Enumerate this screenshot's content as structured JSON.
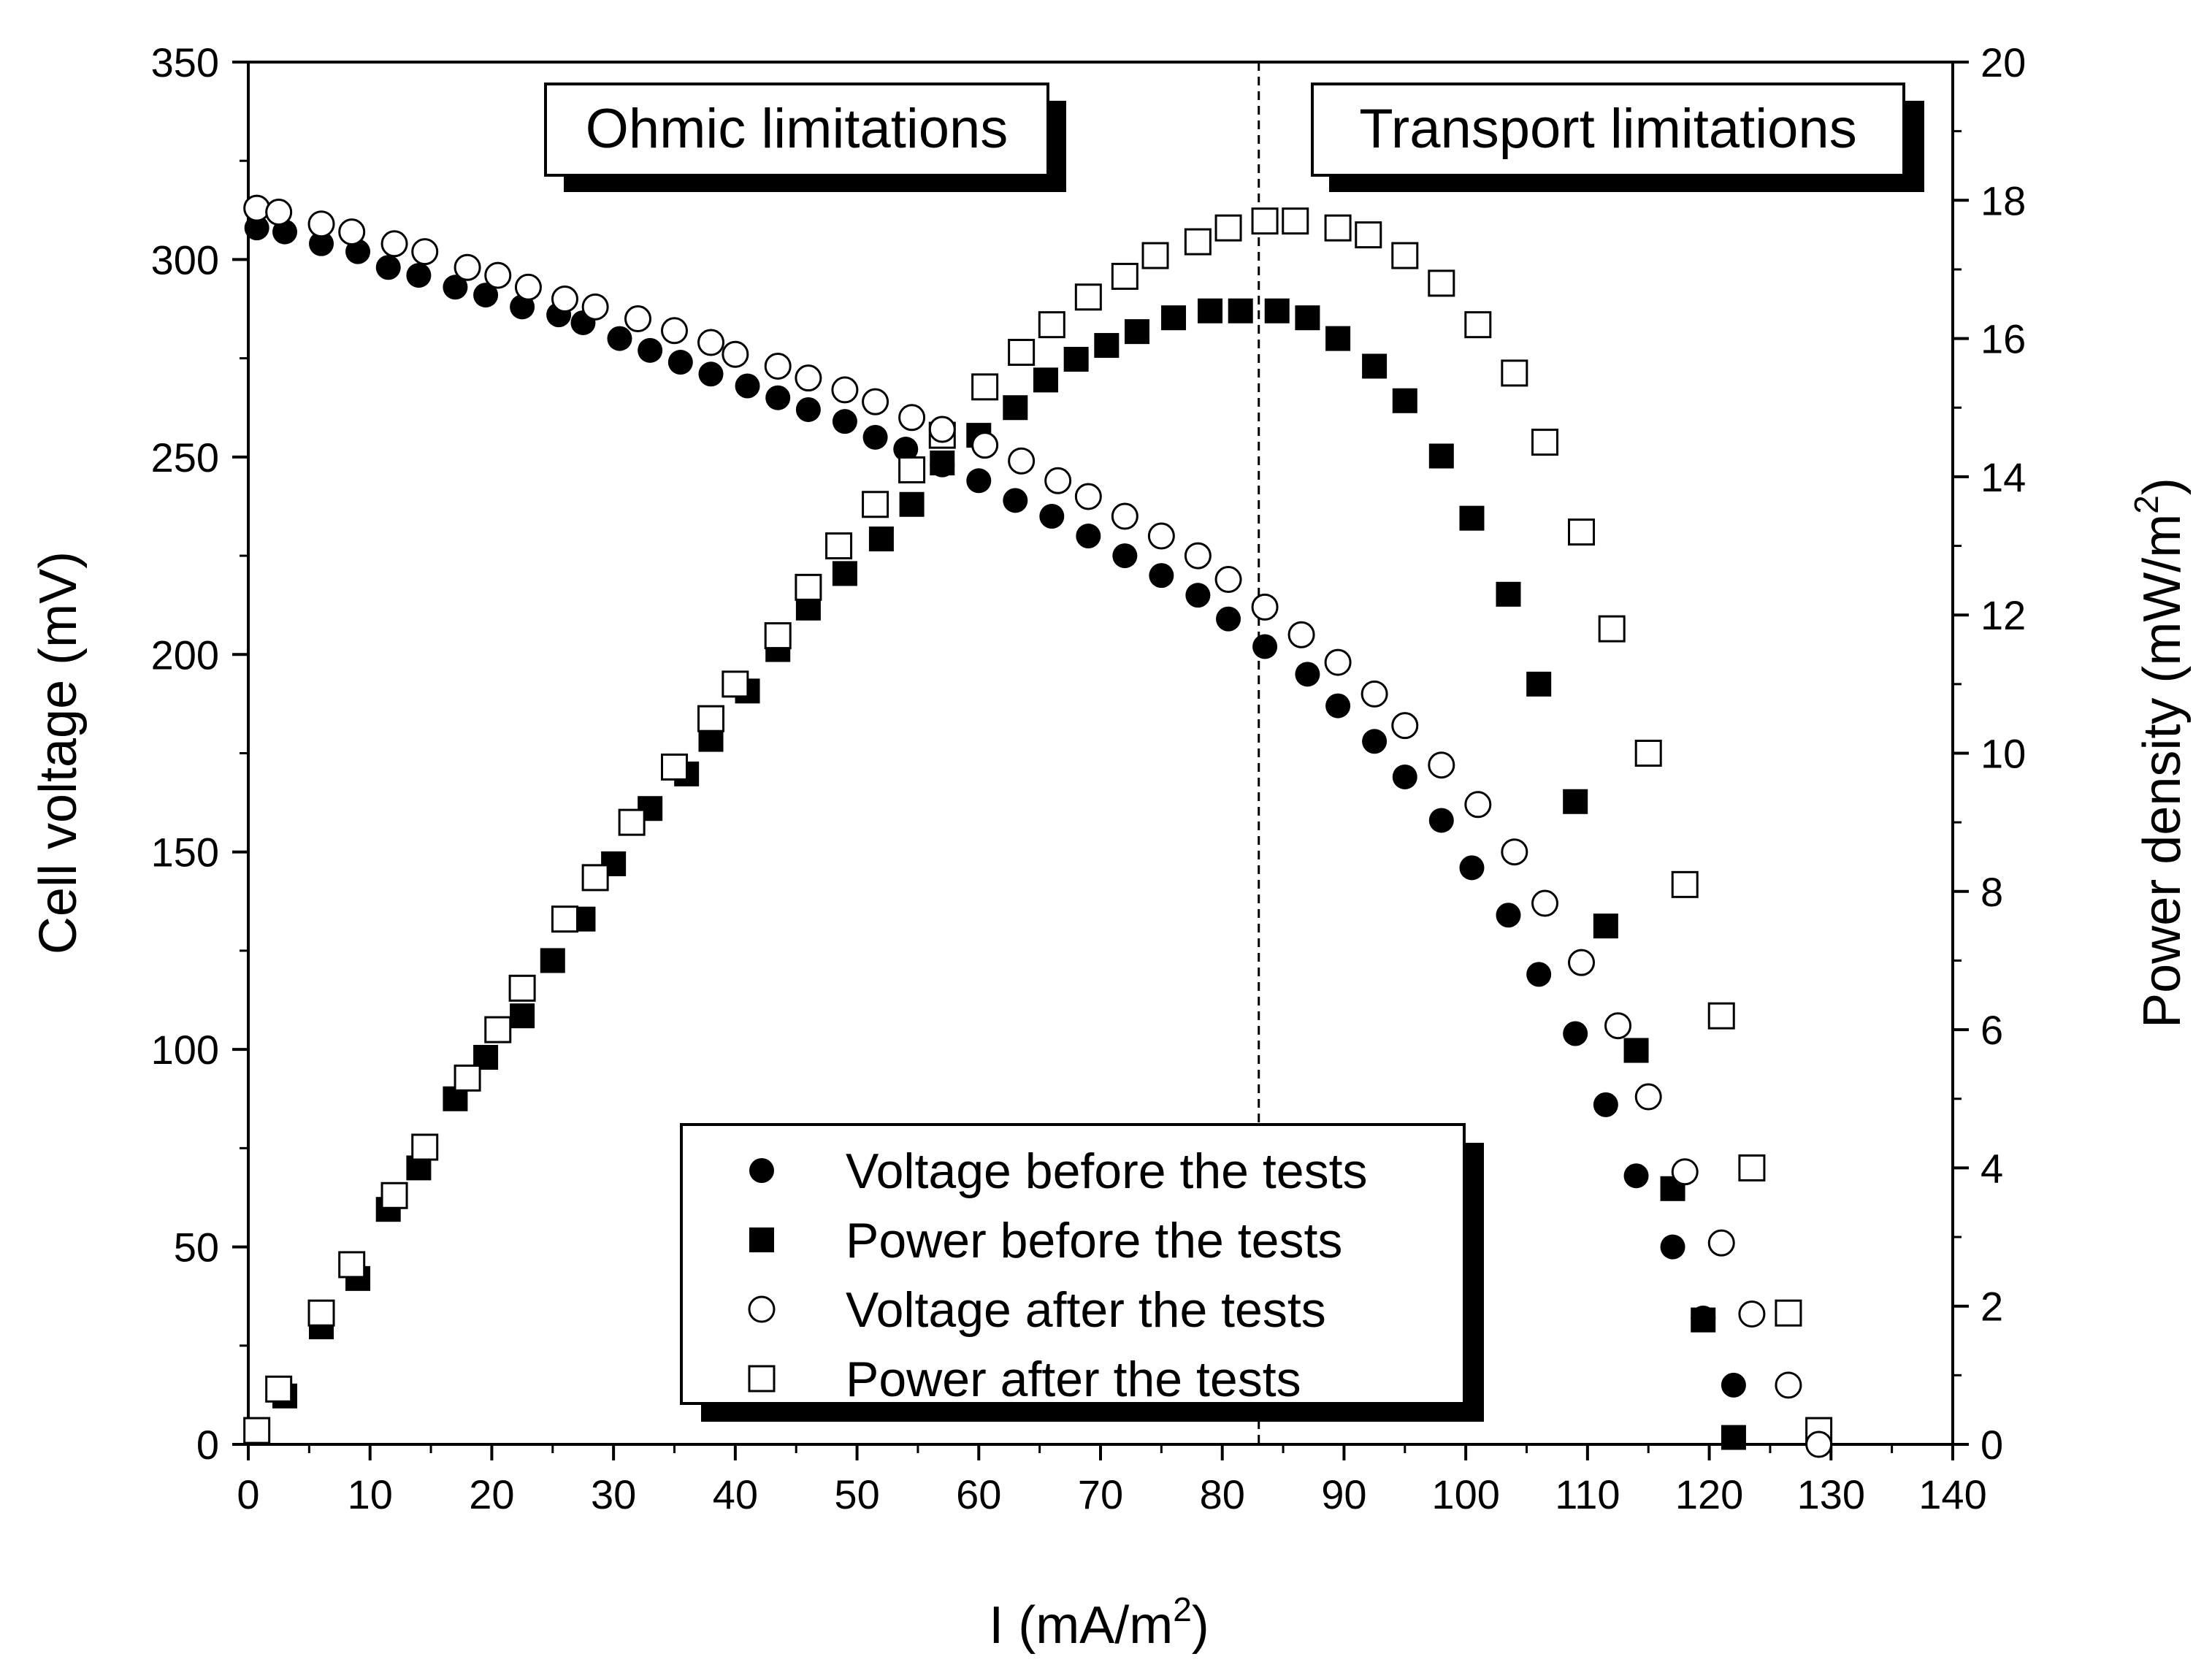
{
  "chart_data": {
    "type": "scatter",
    "xlabel": "I (mA/m",
    "xlabel_sup": "2",
    "xlabel_end": ")",
    "ylabel_left": "Cell voltage (mV)",
    "ylabel_right": "Power density (mW/m",
    "ylabel_right_sup": "2",
    "ylabel_right_end": ")",
    "xlim": [
      0,
      140
    ],
    "ylim_left": [
      0,
      350
    ],
    "ylim_right": [
      0,
      20
    ],
    "x_ticks": [
      "0",
      "10",
      "20",
      "30",
      "40",
      "50",
      "60",
      "70",
      "80",
      "90",
      "100",
      "110",
      "120",
      "130",
      "140"
    ],
    "y_left_ticks": [
      "0",
      "50",
      "100",
      "150",
      "200",
      "250",
      "300",
      "350"
    ],
    "y_right_ticks": [
      "0",
      "2",
      "4",
      "6",
      "8",
      "10",
      "12",
      "14",
      "16",
      "18",
      "20"
    ],
    "annotations": {
      "ohmic": "Ohmic limitations",
      "transport": "Transport limitations",
      "divider_x": 83
    },
    "legend_position": "bottom-center",
    "series": [
      {
        "name": "Voltage before the tests",
        "marker": "filled-circle",
        "axis": "left",
        "x": [
          0.7,
          3,
          6,
          9,
          11.5,
          14,
          17,
          19.5,
          22.5,
          25.5,
          27.5,
          30.5,
          33,
          35.5,
          38,
          41,
          43.5,
          46,
          49,
          51.5,
          54,
          57,
          60,
          63,
          66,
          69,
          72,
          75,
          78,
          80.5,
          83.5,
          87,
          89.5,
          92.5,
          95,
          98,
          100.5,
          103.5,
          106,
          109,
          111.5,
          114,
          117,
          119.5,
          122
        ],
        "y": [
          308,
          307,
          304,
          302,
          298,
          296,
          293,
          291,
          288,
          286,
          284,
          280,
          277,
          274,
          271,
          268,
          265,
          262,
          259,
          255,
          252,
          248,
          244,
          239,
          235,
          230,
          225,
          220,
          215,
          209,
          202,
          195,
          187,
          178,
          169,
          158,
          146,
          134,
          119,
          104,
          86,
          68,
          50,
          32,
          15
        ]
      },
      {
        "name": "Power before the tests",
        "marker": "filled-square",
        "axis": "right",
        "x": [
          0.7,
          3,
          6,
          9,
          11.5,
          14,
          17,
          19.5,
          22.5,
          25,
          27.5,
          30,
          33,
          36,
          38,
          41,
          43.5,
          46,
          49,
          52,
          54.5,
          57,
          60,
          63,
          65.5,
          68,
          70.5,
          73,
          76,
          79,
          81.5,
          84.5,
          87,
          89.5,
          92.5,
          95,
          98,
          100.5,
          103.5,
          106,
          109,
          111.5,
          114,
          117,
          119.5,
          122
        ],
        "y": [
          0.2,
          0.7,
          1.7,
          2.4,
          3.4,
          4,
          5,
          5.6,
          6.2,
          7,
          7.6,
          8.4,
          9.2,
          9.7,
          10.2,
          10.9,
          11.5,
          12.1,
          12.6,
          13.1,
          13.6,
          14.2,
          14.6,
          15,
          15.4,
          15.7,
          15.9,
          16.1,
          16.3,
          16.4,
          16.4,
          16.4,
          16.3,
          16,
          15.6,
          15.1,
          14.3,
          13.4,
          12.3,
          11,
          9.3,
          7.5,
          5.7,
          3.7,
          1.8,
          0.1
        ]
      },
      {
        "name": "Voltage after the tests",
        "marker": "open-circle",
        "axis": "left",
        "x": [
          0.7,
          2.5,
          6,
          8.5,
          12,
          14.5,
          18,
          20.5,
          23,
          26,
          28.5,
          32,
          35,
          38,
          40,
          43.5,
          46,
          49,
          51.5,
          54.5,
          57,
          60.5,
          63.5,
          66.5,
          69,
          72,
          75,
          78,
          80.5,
          83.5,
          86.5,
          89.5,
          92.5,
          95,
          98,
          101,
          104,
          106.5,
          109.5,
          112.5,
          115,
          118,
          121,
          123.5,
          126.5,
          129
        ],
        "y": [
          313,
          312,
          309,
          307,
          304,
          302,
          298,
          296,
          293,
          290,
          288,
          285,
          282,
          279,
          276,
          273,
          270,
          267,
          264,
          260,
          257,
          253,
          249,
          244,
          240,
          235,
          230,
          225,
          219,
          212,
          205,
          198,
          190,
          182,
          172,
          162,
          150,
          137,
          122,
          106,
          88,
          69,
          51,
          33,
          15,
          0
        ]
      },
      {
        "name": "Power after the tests",
        "marker": "open-square",
        "axis": "right",
        "x": [
          0.7,
          2.5,
          6,
          8.5,
          12,
          14.5,
          18,
          20.5,
          22.5,
          26,
          28.5,
          31.5,
          35,
          38,
          40,
          43.5,
          46,
          48.5,
          51.5,
          54.5,
          57,
          60.5,
          63.5,
          66,
          69,
          72,
          74.5,
          78,
          80.5,
          83.5,
          86,
          89.5,
          92,
          95,
          98,
          101,
          104,
          106.5,
          109.5,
          112,
          115,
          118,
          121,
          123.5,
          126.5,
          129
        ],
        "y": [
          0.2,
          0.8,
          1.9,
          2.6,
          3.6,
          4.3,
          5.3,
          6,
          6.6,
          7.6,
          8.2,
          9,
          9.8,
          10.5,
          11,
          11.7,
          12.4,
          13,
          13.6,
          14.1,
          14.6,
          15.3,
          15.8,
          16.2,
          16.6,
          16.9,
          17.2,
          17.4,
          17.6,
          17.7,
          17.7,
          17.6,
          17.5,
          17.2,
          16.8,
          16.2,
          15.5,
          14.5,
          13.2,
          11.8,
          10,
          8.1,
          6.2,
          4,
          1.9,
          0.2
        ]
      }
    ]
  }
}
